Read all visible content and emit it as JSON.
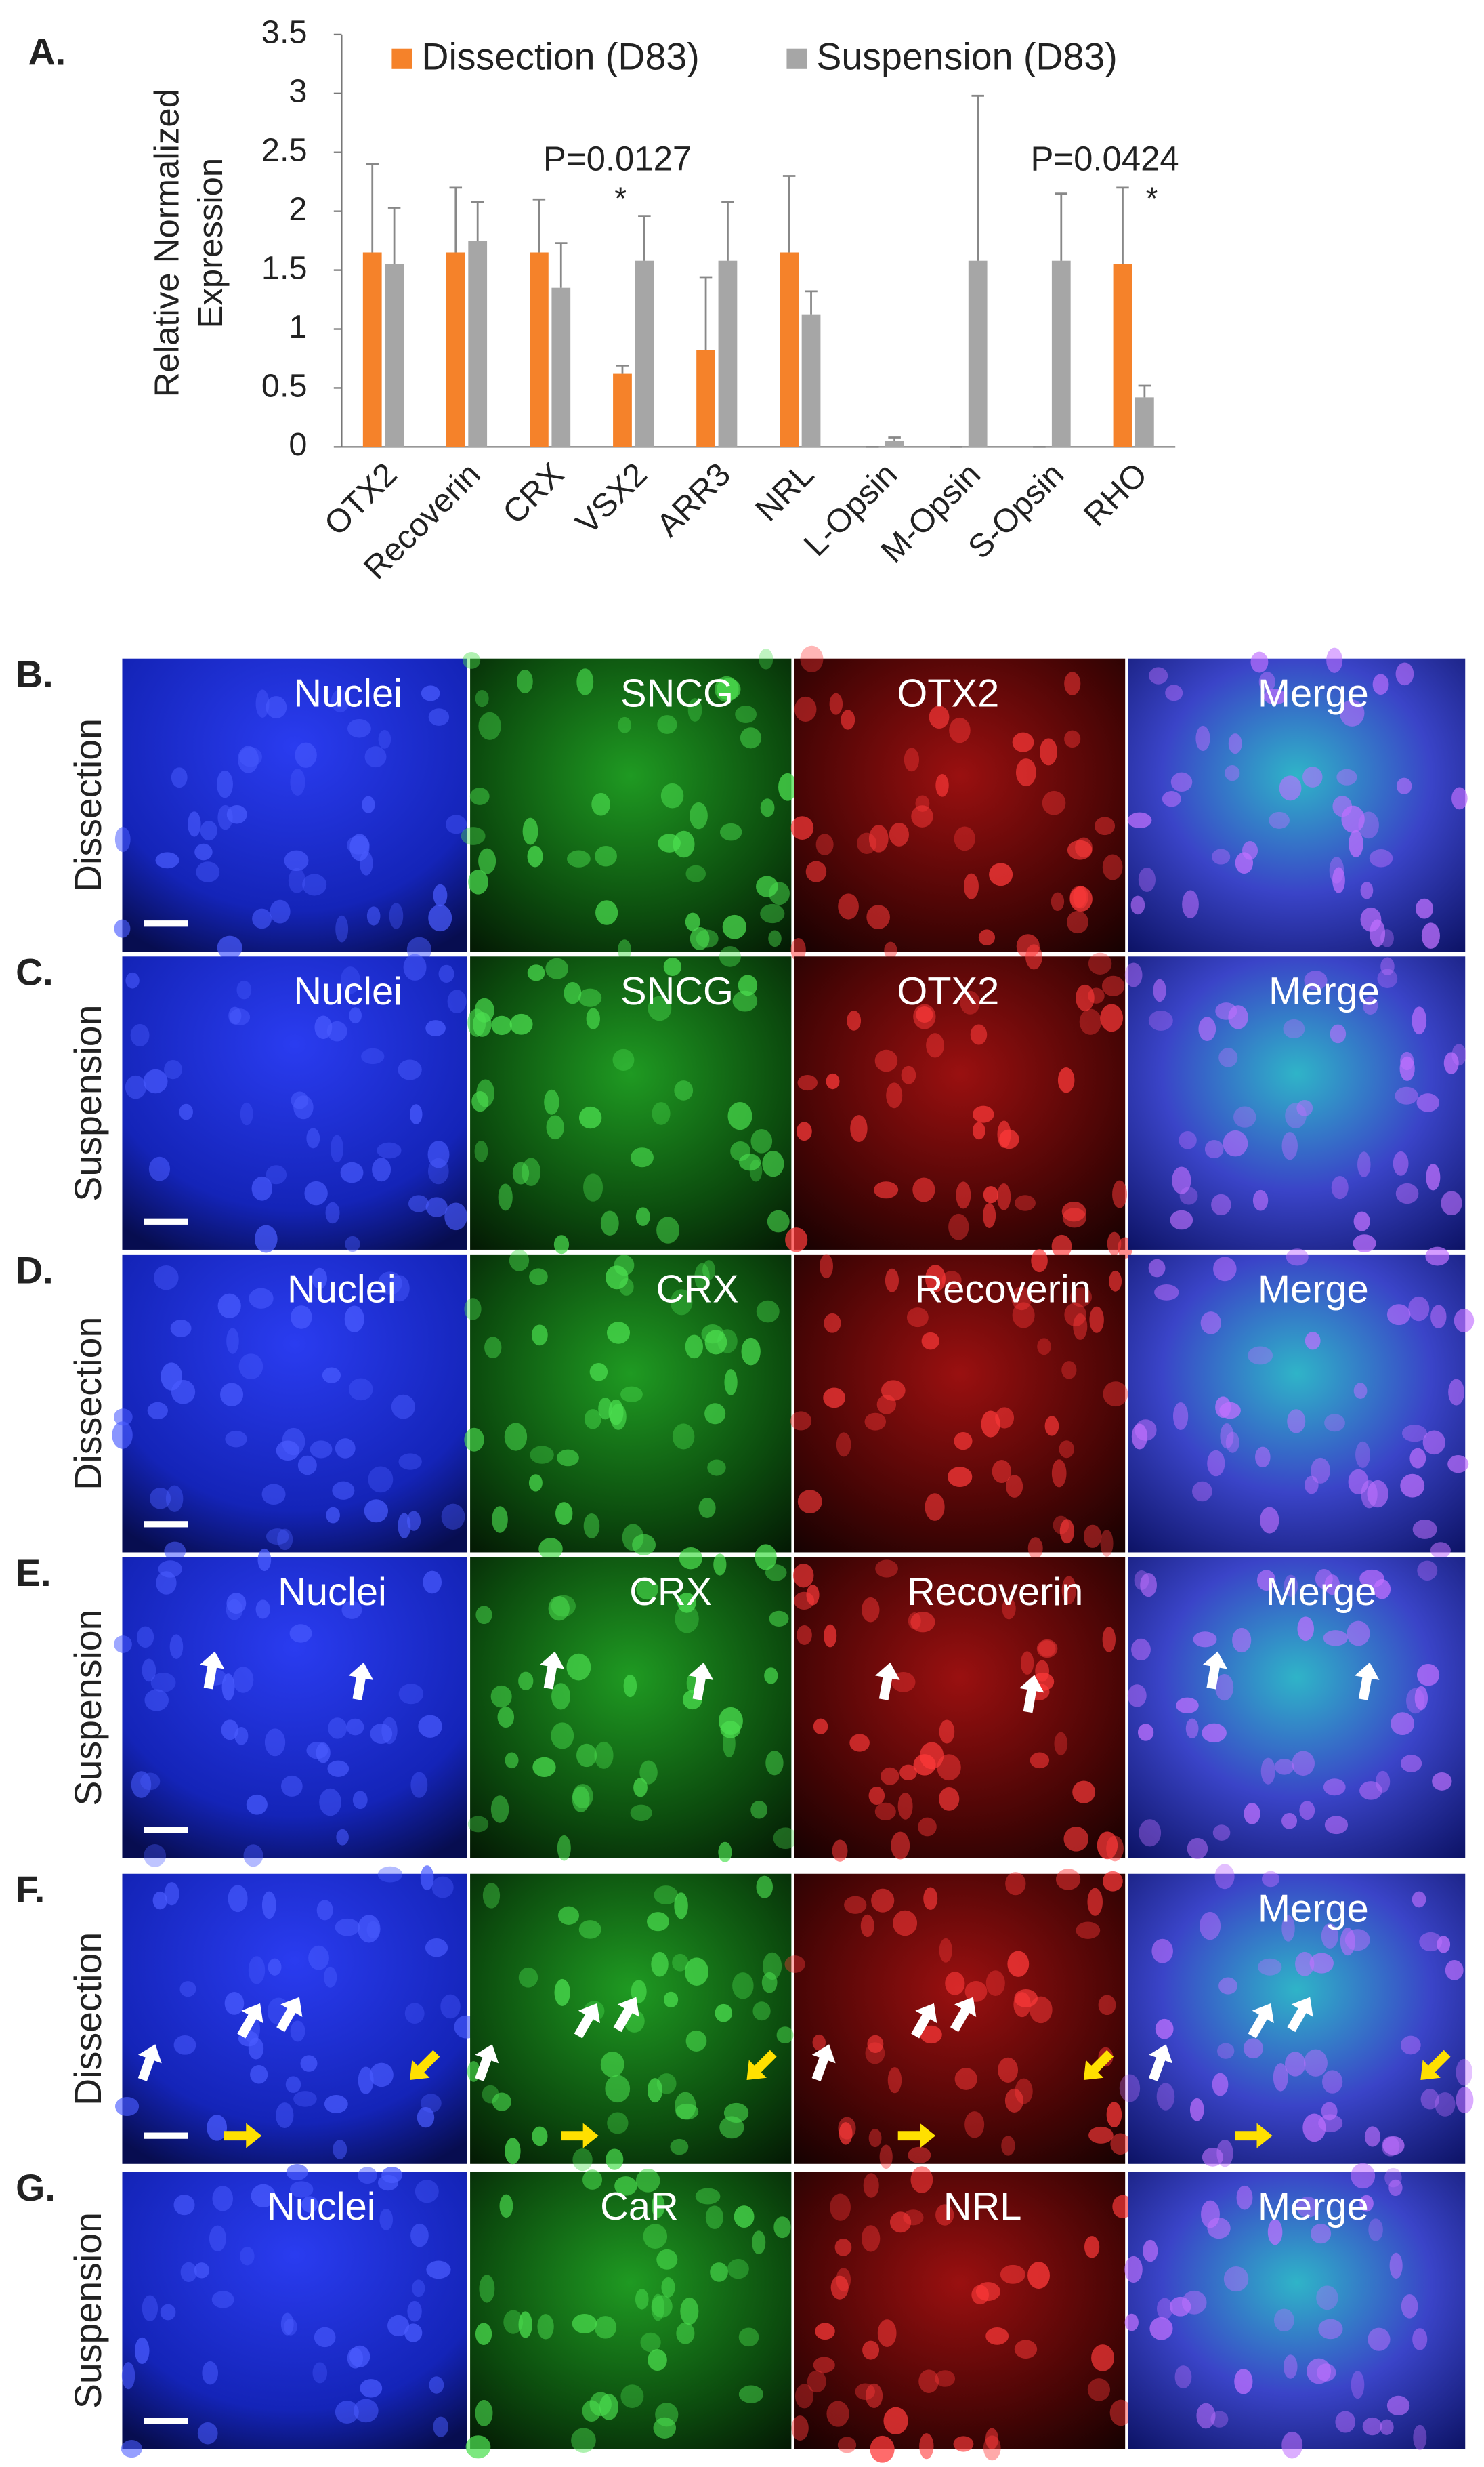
{
  "chart_data": {
    "type": "bar",
    "panel_label": "A.",
    "ylabel": [
      "Relative Normalized",
      "Expression"
    ],
    "categories": [
      "OTX2",
      "Recoverin",
      "CRX",
      "VSX2",
      "ARR3",
      "NRL",
      "L-Opsin",
      "M-Opsin",
      "S-Opsin",
      "RHO"
    ],
    "series": [
      {
        "name": "Dissection (D83)",
        "color": "#f5822a",
        "values": [
          1.65,
          1.65,
          1.65,
          0.62,
          0.82,
          1.65,
          0,
          0,
          0,
          1.55
        ],
        "errors": [
          0.75,
          0.55,
          0.45,
          0.07,
          0.62,
          0.65,
          0,
          0,
          0,
          0.65
        ]
      },
      {
        "name": "Suspension (D83)",
        "color": "#a6a6a6",
        "values": [
          1.55,
          1.75,
          1.35,
          1.58,
          1.58,
          1.12,
          0.05,
          1.58,
          1.58,
          0.42
        ],
        "errors": [
          0.48,
          0.33,
          0.38,
          0.38,
          0.5,
          0.2,
          0.03,
          1.4,
          0.57,
          0.1
        ]
      }
    ],
    "ylim": [
      0,
      3.5
    ],
    "yticks": [
      0,
      0.5,
      1,
      1.5,
      2,
      2.5,
      3,
      3.5
    ],
    "annotations": [
      "P=0.0127",
      "*",
      "P=0.0424",
      "*"
    ],
    "legend": "top"
  },
  "panels": [
    {
      "label": "B.",
      "condition": "Dissection",
      "channels": [
        "Nuclei",
        "SNCG",
        "OTX2",
        "Merge"
      ]
    },
    {
      "label": "C.",
      "condition": "Suspension",
      "channels": [
        "Nuclei",
        "SNCG",
        "OTX2",
        "Merge"
      ]
    },
    {
      "label": "D.",
      "condition": "Dissection",
      "channels": [
        "Nuclei",
        "CRX",
        "Recoverin",
        "Merge"
      ]
    },
    {
      "label": "E.",
      "condition": "Suspension",
      "channels": [
        "Nuclei",
        "CRX",
        "Recoverin",
        "Merge"
      ]
    },
    {
      "label": "F.",
      "condition": "Dissection",
      "channels": [
        null,
        null,
        null,
        "Merge"
      ]
    },
    {
      "label": "G.",
      "condition": "Suspension",
      "channels": [
        "Nuclei",
        "CaR",
        "NRL",
        "Merge"
      ]
    }
  ]
}
